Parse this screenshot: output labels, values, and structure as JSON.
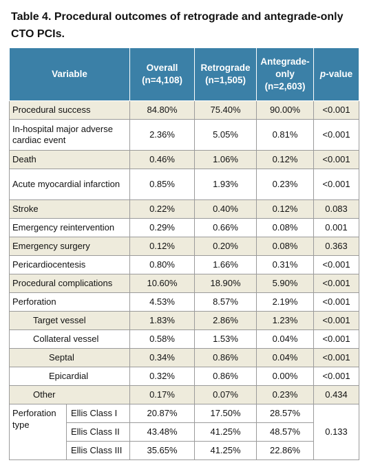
{
  "title": "Table 4. Procedural outcomes of retrograde and antegrade-only CTO PCIs.",
  "header": {
    "variable": "Variable",
    "overall_line1": "Overall",
    "overall_line2": "(n=4,108)",
    "retro_line1": "Retrograde",
    "retro_line2": "(n=1,505)",
    "ante_line1": "Antegrade-",
    "ante_line2": "only",
    "ante_line3": "(n=2,603)",
    "p_italic": "p",
    "p_rest": "-value"
  },
  "rows": [
    {
      "label": "Procedural success",
      "overall": "84.80%",
      "retro": "75.40%",
      "ante": "90.00%",
      "p": "<0.001"
    },
    {
      "label": "In-hospital major adverse cardiac event",
      "overall": "2.36%",
      "retro": "5.05%",
      "ante": "0.81%",
      "p": "<0.001"
    },
    {
      "label": "Death",
      "overall": "0.46%",
      "retro": "1.06%",
      "ante": "0.12%",
      "p": "<0.001"
    },
    {
      "label": "Acute myocardial infarction",
      "overall": "0.85%",
      "retro": "1.93%",
      "ante": "0.23%",
      "p": "<0.001"
    },
    {
      "label": "Stroke",
      "overall": "0.22%",
      "retro": "0.40%",
      "ante": "0.12%",
      "p": "0.083"
    },
    {
      "label": "Emergency reintervention",
      "overall": "0.29%",
      "retro": "0.66%",
      "ante": "0.08%",
      "p": "0.001"
    },
    {
      "label": "Emergency surgery",
      "overall": "0.12%",
      "retro": "0.20%",
      "ante": "0.08%",
      "p": "0.363"
    },
    {
      "label": "Pericardiocentesis",
      "overall": "0.80%",
      "retro": "1.66%",
      "ante": "0.31%",
      "p": "<0.001"
    },
    {
      "label": "Procedural complications",
      "overall": "10.60%",
      "retro": "18.90%",
      "ante": "5.90%",
      "p": "<0.001"
    },
    {
      "label": "Perforation",
      "overall": "4.53%",
      "retro": "8.57%",
      "ante": "2.19%",
      "p": "<0.001"
    },
    {
      "label": "Target vessel",
      "overall": "1.83%",
      "retro": "2.86%",
      "ante": "1.23%",
      "p": "<0.001"
    },
    {
      "label": "Collateral vessel",
      "overall": "0.58%",
      "retro": "1.53%",
      "ante": "0.04%",
      "p": "<0.001"
    },
    {
      "label": "Septal",
      "overall": "0.34%",
      "retro": "0.86%",
      "ante": "0.04%",
      "p": "<0.001"
    },
    {
      "label": "Epicardial",
      "overall": "0.32%",
      "retro": "0.86%",
      "ante": "0.00%",
      "p": "<0.001"
    },
    {
      "label": "Other",
      "overall": "0.17%",
      "retro": "0.07%",
      "ante": "0.23%",
      "p": "0.434"
    }
  ],
  "perforation_type": {
    "label_line1": "Perforation",
    "label_line2": "type",
    "p": "0.133",
    "classes": [
      {
        "label": "Ellis Class I",
        "overall": "20.87%",
        "retro": "17.50%",
        "ante": "28.57%"
      },
      {
        "label": "Ellis Class II",
        "overall": "43.48%",
        "retro": "41.25%",
        "ante": "48.57%"
      },
      {
        "label": "Ellis Class III",
        "overall": "35.65%",
        "retro": "41.25%",
        "ante": "22.86%"
      }
    ]
  }
}
